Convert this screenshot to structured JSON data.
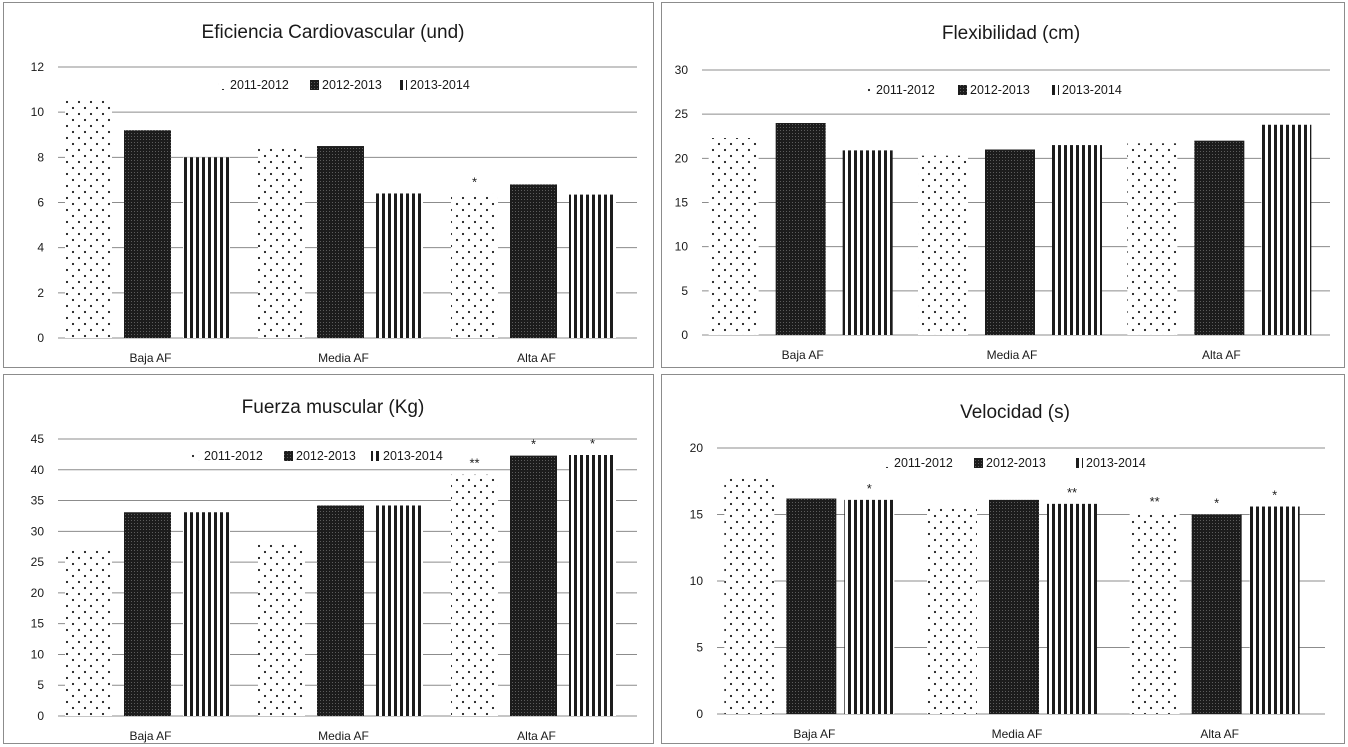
{
  "chart_data": [
    {
      "type": "bar",
      "title": "Eficiencia Cardiovascular (und)",
      "categories": [
        "Baja AF",
        "Media AF",
        "Alta AF"
      ],
      "series": [
        {
          "name": "2011-2012",
          "values": [
            10.6,
            8.4,
            6.4
          ]
        },
        {
          "name": "2012-2013",
          "values": [
            9.2,
            8.5,
            6.8
          ]
        },
        {
          "name": "2013-2014",
          "values": [
            8.0,
            6.4,
            6.35
          ]
        }
      ],
      "annotations": [
        [
          "",
          "",
          ""
        ],
        [
          "",
          "",
          ""
        ],
        [
          "*",
          "",
          ""
        ]
      ],
      "ylim": [
        0,
        12
      ],
      "yticks": [
        0,
        2,
        4,
        6,
        8,
        10,
        12
      ],
      "grid": true,
      "legend": "top"
    },
    {
      "type": "bar",
      "title": "Flexibilidad (cm)",
      "categories": [
        "Baja AF",
        "Media AF",
        "Alta AF"
      ],
      "series": [
        {
          "name": "2011-2012",
          "values": [
            22.3,
            20.3,
            21.7
          ]
        },
        {
          "name": "2012-2013",
          "values": [
            24.0,
            21.0,
            22.0
          ]
        },
        {
          "name": "2013-2014",
          "values": [
            20.9,
            21.5,
            23.8
          ]
        }
      ],
      "annotations": [
        [
          "",
          "",
          ""
        ],
        [
          "",
          "",
          ""
        ],
        [
          "",
          "",
          ""
        ]
      ],
      "ylim": [
        0,
        30
      ],
      "yticks": [
        0,
        5,
        10,
        15,
        20,
        25,
        30
      ],
      "grid": true,
      "legend": "top"
    },
    {
      "type": "bar",
      "title": "Fuerza muscular (Kg)",
      "categories": [
        "Baja AF",
        "Media AF",
        "Alta AF"
      ],
      "series": [
        {
          "name": "2011-2012",
          "values": [
            27.0,
            28.0,
            39.2
          ]
        },
        {
          "name": "2012-2013",
          "values": [
            33.1,
            34.2,
            42.3
          ]
        },
        {
          "name": "2013-2014",
          "values": [
            33.1,
            34.2,
            42.4
          ]
        }
      ],
      "annotations": [
        [
          "",
          "",
          ""
        ],
        [
          "",
          "",
          ""
        ],
        [
          "**",
          "*",
          "*"
        ]
      ],
      "ylim": [
        0,
        45
      ],
      "yticks": [
        0,
        5,
        10,
        15,
        20,
        25,
        30,
        35,
        40,
        45
      ],
      "grid": true,
      "legend": "top"
    },
    {
      "type": "bar",
      "title": "Velocidad (s)",
      "categories": [
        "Baja AF",
        "Media AF",
        "Alta AF"
      ],
      "series": [
        {
          "name": "2011-2012",
          "values": [
            17.9,
            15.6,
            15.1
          ]
        },
        {
          "name": "2012-2013",
          "values": [
            16.2,
            16.1,
            15.0
          ]
        },
        {
          "name": "2013-2014",
          "values": [
            16.1,
            15.8,
            15.6
          ]
        }
      ],
      "annotations": [
        [
          "",
          "",
          "*"
        ],
        [
          "",
          "",
          "**"
        ],
        [
          "**",
          "*",
          "*"
        ]
      ],
      "ylim": [
        0,
        20
      ],
      "yticks": [
        0,
        5,
        10,
        15,
        20
      ],
      "grid": true,
      "legend": "top"
    }
  ],
  "patterns": {
    "2011-2012": "dots",
    "2012-2013": "dense-dark",
    "2013-2014": "vertical-stripes"
  },
  "colors": {
    "bar_fill": "#1c1c1c",
    "grid": "#8c8c8c",
    "frame": "#8c8c8c"
  }
}
